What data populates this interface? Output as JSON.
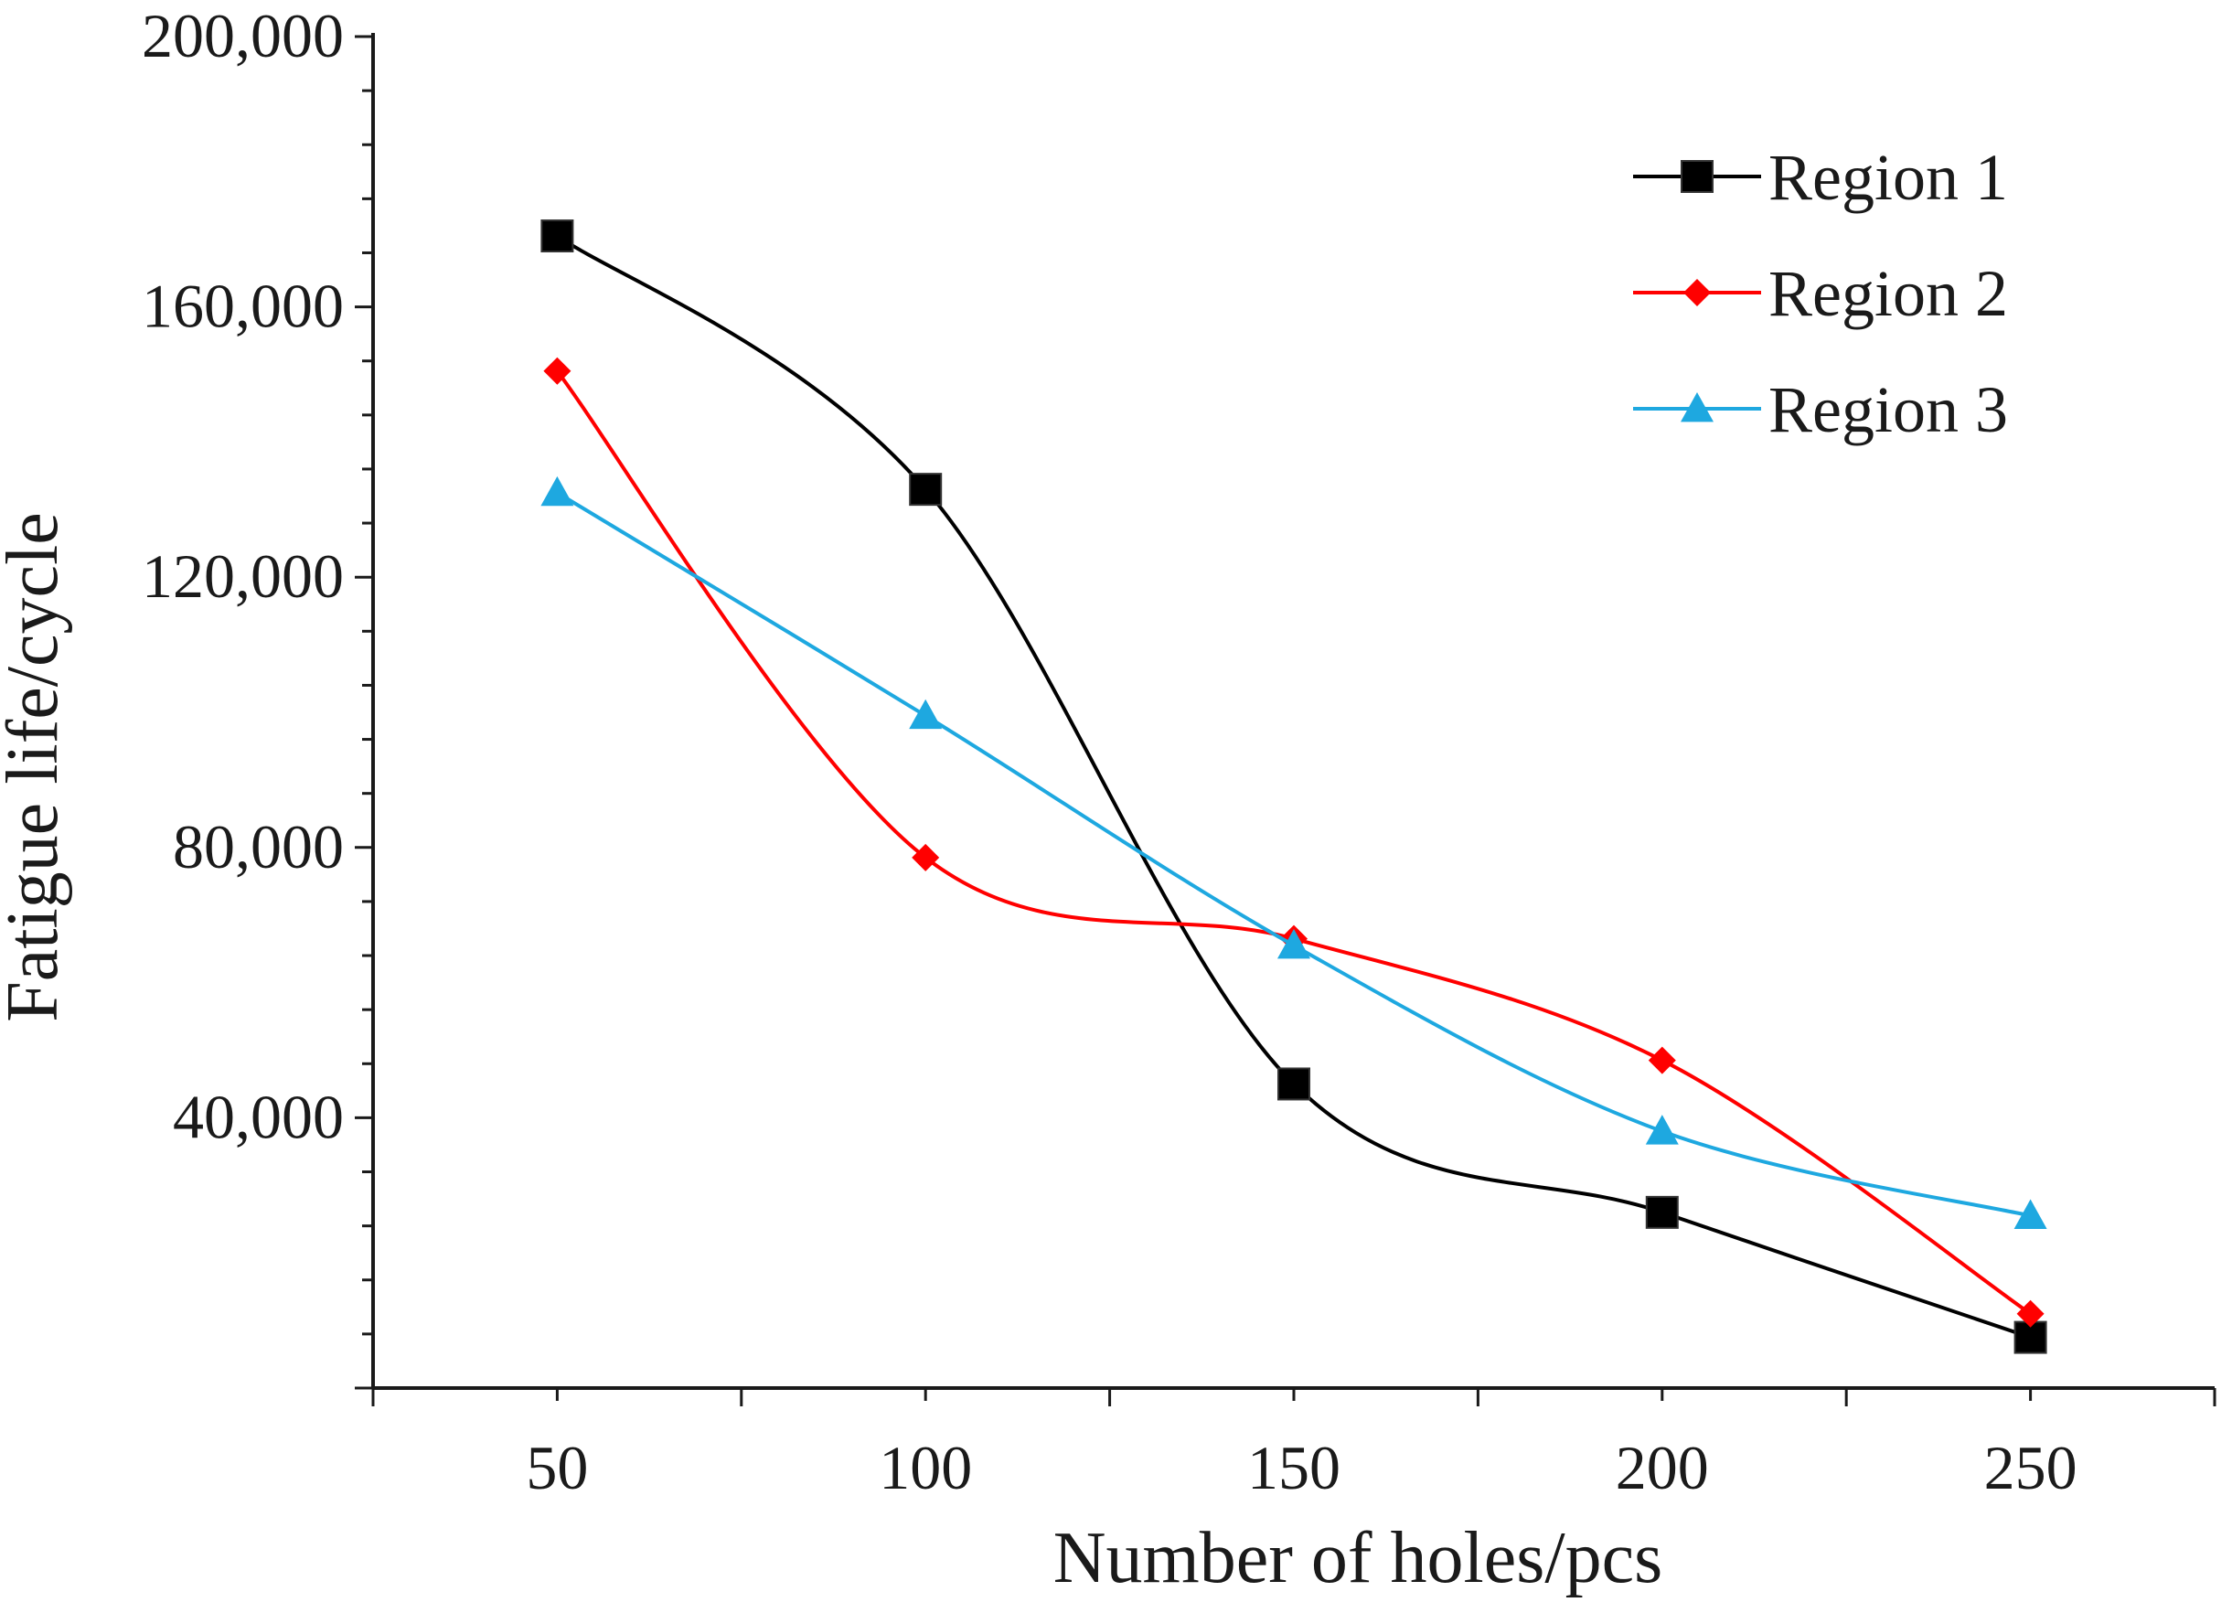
{
  "chart_data": {
    "type": "line",
    "title": "",
    "xlabel": "Number of holes/pcs",
    "ylabel": "Fatigue life/cycle",
    "x": [
      50,
      100,
      150,
      200,
      250
    ],
    "x_tick_labels": [
      "50",
      "100",
      "150",
      "200",
      "250"
    ],
    "xlim": [
      25,
      275
    ],
    "ylim": [
      0,
      200000
    ],
    "y_ticks": [
      40000,
      80000,
      120000,
      160000,
      200000
    ],
    "y_tick_labels": [
      "40,000",
      "80,000",
      "120,000",
      "160,000",
      "200,000"
    ],
    "grid": false,
    "legend_position": "top-right",
    "series": [
      {
        "name": "Region 1",
        "color": "#000000",
        "marker": "square",
        "values": [
          170500,
          133000,
          45000,
          26000,
          7500
        ]
      },
      {
        "name": "Region 2",
        "color": "#ff0000",
        "marker": "diamond",
        "values": [
          150500,
          78500,
          66500,
          48500,
          11000
        ]
      },
      {
        "name": "Region 3",
        "color": "#1ea8e0",
        "marker": "triangle",
        "values": [
          132500,
          99500,
          65500,
          38000,
          25500
        ]
      }
    ]
  }
}
